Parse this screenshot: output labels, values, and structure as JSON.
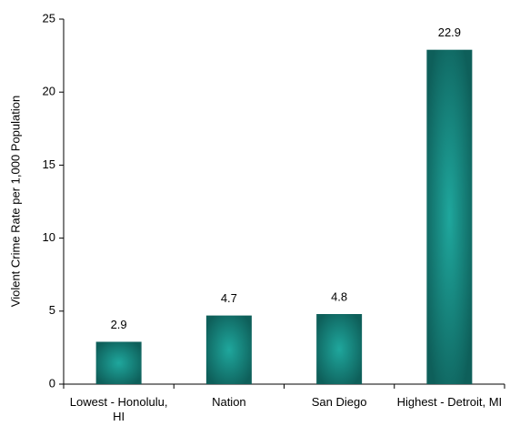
{
  "chart_data": {
    "type": "bar",
    "y_label": "Violent Crime Rate per 1,000 Population",
    "categories": [
      "Lowest - Honolulu, HI",
      "Nation",
      "San Diego",
      "Highest - Detroit, MI"
    ],
    "values": [
      2.9,
      4.7,
      4.8,
      22.9
    ],
    "color": "#0e5f5a",
    "ylim": [
      0,
      25
    ],
    "yticks": [
      0,
      5,
      10,
      15,
      20,
      25
    ]
  }
}
